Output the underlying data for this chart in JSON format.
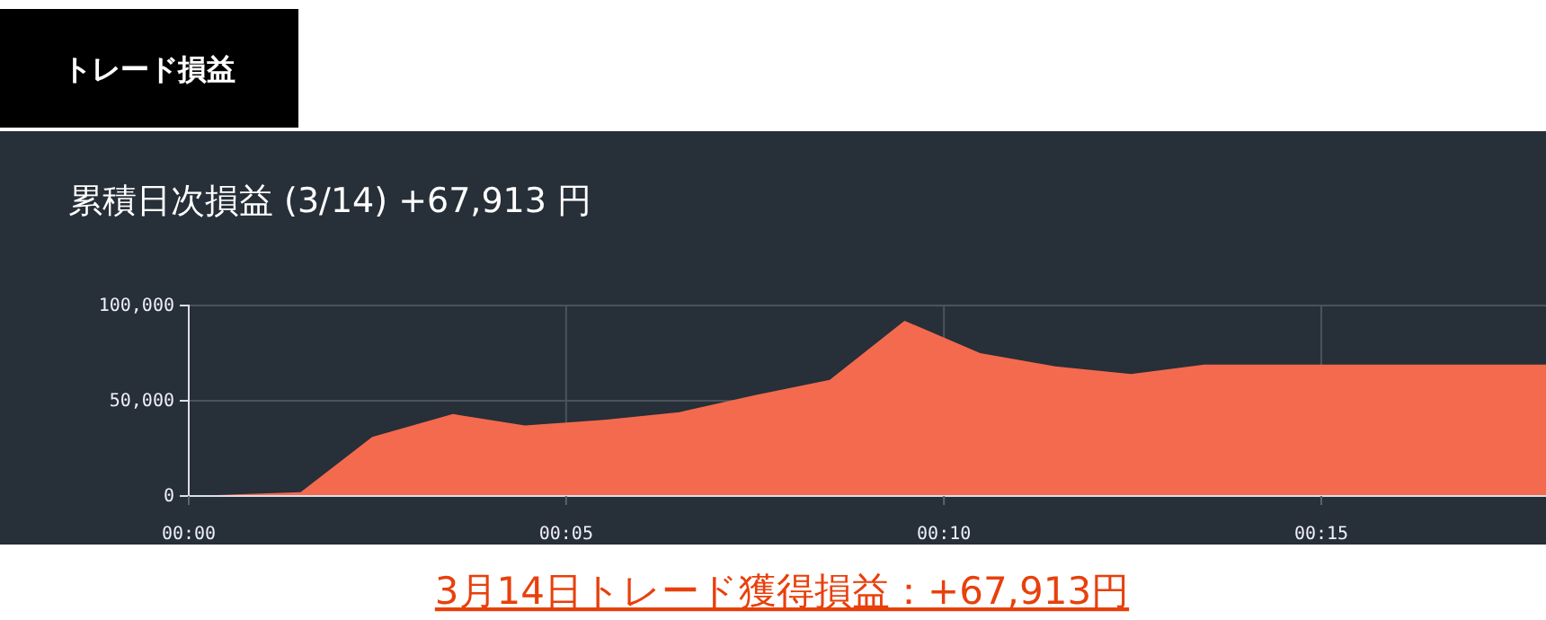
{
  "chart_data": {
    "type": "area",
    "title": "累積日次損益 (3/14) +67,913 円",
    "annotations": [
      "トレード損益",
      "3月14日トレード獲得損益：+67,913円"
    ],
    "x": [
      0,
      0.0247,
      0.0405,
      0.0583,
      0.0742,
      0.0917,
      0.1083,
      0.125,
      0.1415,
      0.158,
      0.1747,
      0.1913,
      0.208,
      0.2242,
      0.3
    ],
    "series": [
      {
        "color": "#f46a4e",
        "values": [
          0,
          2000,
          31000,
          43000,
          37000,
          40000,
          44000,
          53000,
          61000,
          92000,
          75000,
          68000,
          64000,
          69000,
          69000
        ]
      }
    ],
    "xlim": [
      0,
      0.3
    ],
    "xticks": [
      {
        "value": 0,
        "label": "00:00"
      },
      {
        "value": 0.0833,
        "label": "00:05"
      },
      {
        "value": 0.1667,
        "label": "00:10"
      },
      {
        "value": 0.25,
        "label": "00:15"
      }
    ],
    "ylim": [
      0,
      100000
    ],
    "yticks": [
      {
        "value": 0,
        "label": "0"
      },
      {
        "value": 50000,
        "label": "50,000"
      },
      {
        "value": 100000,
        "label": "100,000"
      }
    ],
    "grid": true
  }
}
